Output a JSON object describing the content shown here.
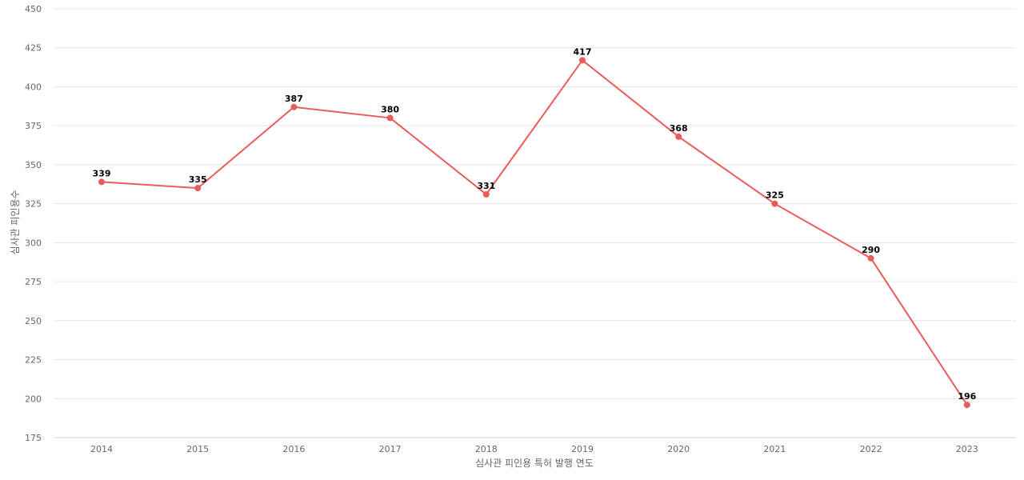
{
  "chart_data": {
    "type": "line",
    "title": "",
    "xlabel": "심사관 피인용 특허 발행 연도",
    "ylabel": "심사관 피인용수",
    "categories": [
      "2014",
      "2015",
      "2016",
      "2017",
      "2018",
      "2019",
      "2020",
      "2021",
      "2022",
      "2023"
    ],
    "series": [
      {
        "values": [
          339,
          335,
          387,
          380,
          331,
          417,
          368,
          325,
          290,
          196
        ]
      }
    ],
    "ylim": [
      175,
      450
    ],
    "yticks": [
      175,
      200,
      225,
      250,
      275,
      300,
      325,
      350,
      375,
      400,
      425,
      450
    ],
    "grid": true,
    "legend": "none",
    "colors": {
      "line": "#e85c5c",
      "grid": "#e6e6e6",
      "tick_text": "#666666",
      "label_text": "#000000"
    }
  }
}
